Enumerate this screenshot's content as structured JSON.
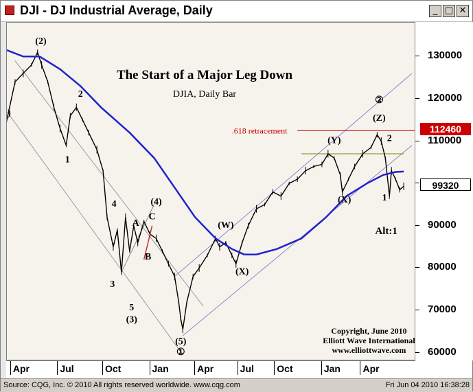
{
  "window": {
    "title": "DJI - DJ Industrial Average, Daily",
    "buttons": [
      "_",
      "□",
      "✕"
    ]
  },
  "status": {
    "left": "Source: CQG, Inc. © 2010 All rights reserved worldwide. www.cqg.com",
    "right": "Fri Jun 04 2010 16:38:28"
  },
  "chart_data": {
    "type": "line",
    "title": "The Start of a Major Leg Down",
    "subtitle": "DJIA, Daily Bar",
    "x_tick_labels": [
      "Apr",
      "Jul",
      "Oct",
      "Jan",
      "Apr",
      "Jul",
      "Oct",
      "Jan",
      "Apr"
    ],
    "y_tick_labels": [
      "130000",
      "120000",
      "110000",
      "100000",
      "90000",
      "80000",
      "70000",
      "60000"
    ],
    "ylim": [
      58000,
      138000
    ],
    "grid": false,
    "price_tags": [
      {
        "label": "112460",
        "value": 112460,
        "color": "#cc0000"
      },
      {
        "label": "99320",
        "value": 99320,
        "color": "#000000"
      }
    ],
    "annotations": {
      "retracement": ".618 retracement",
      "alt": "Alt:1",
      "copyright": [
        "Copyright, June 2010",
        "Elliott Wave International",
        "www.elliottwave.com"
      ]
    },
    "series": [
      {
        "name": "price",
        "color": "#000000",
        "points": [
          [
            0.0,
            115000
          ],
          [
            0.02,
            124000
          ],
          [
            0.04,
            126000
          ],
          [
            0.06,
            128000
          ],
          [
            0.075,
            131000
          ],
          [
            0.085,
            128000
          ],
          [
            0.1,
            124000
          ],
          [
            0.115,
            118000
          ],
          [
            0.13,
            113000
          ],
          [
            0.145,
            109000
          ],
          [
            0.155,
            116000
          ],
          [
            0.17,
            118000
          ],
          [
            0.185,
            115000
          ],
          [
            0.2,
            112000
          ],
          [
            0.22,
            108000
          ],
          [
            0.235,
            103000
          ],
          [
            0.245,
            92000
          ],
          [
            0.26,
            85000
          ],
          [
            0.27,
            89000
          ],
          [
            0.28,
            79000
          ],
          [
            0.29,
            92000
          ],
          [
            0.3,
            84000
          ],
          [
            0.31,
            90000
          ],
          [
            0.32,
            86000
          ],
          [
            0.335,
            91000
          ],
          [
            0.35,
            88000
          ],
          [
            0.365,
            87000
          ],
          [
            0.38,
            84000
          ],
          [
            0.395,
            81000
          ],
          [
            0.41,
            78000
          ],
          [
            0.42,
            72000
          ],
          [
            0.425,
            68000
          ],
          [
            0.43,
            65500
          ],
          [
            0.44,
            72000
          ],
          [
            0.455,
            78000
          ],
          [
            0.47,
            80000
          ],
          [
            0.49,
            83000
          ],
          [
            0.51,
            87000
          ],
          [
            0.52,
            85000
          ],
          [
            0.535,
            86000
          ],
          [
            0.55,
            83000
          ],
          [
            0.56,
            81000
          ],
          [
            0.575,
            86000
          ],
          [
            0.59,
            90000
          ],
          [
            0.61,
            94000
          ],
          [
            0.63,
            95000
          ],
          [
            0.65,
            98000
          ],
          [
            0.67,
            97000
          ],
          [
            0.69,
            100000
          ],
          [
            0.71,
            101000
          ],
          [
            0.73,
            103000
          ],
          [
            0.75,
            104000
          ],
          [
            0.77,
            104500
          ],
          [
            0.785,
            107000
          ],
          [
            0.8,
            106000
          ],
          [
            0.815,
            102000
          ],
          [
            0.82,
            98000
          ],
          [
            0.835,
            101000
          ],
          [
            0.85,
            104000
          ],
          [
            0.87,
            107000
          ],
          [
            0.89,
            108500
          ],
          [
            0.905,
            111500
          ],
          [
            0.915,
            110000
          ],
          [
            0.925,
            106000
          ],
          [
            0.935,
            97000
          ],
          [
            0.94,
            103000
          ],
          [
            0.95,
            101000
          ],
          [
            0.96,
            98500
          ],
          [
            0.97,
            99320
          ]
        ]
      },
      {
        "name": "moving-average",
        "color": "#2222cc",
        "points": [
          [
            0.0,
            131500
          ],
          [
            0.04,
            130000
          ],
          [
            0.08,
            130000
          ],
          [
            0.13,
            127000
          ],
          [
            0.18,
            123000
          ],
          [
            0.23,
            118000
          ],
          [
            0.3,
            112000
          ],
          [
            0.36,
            106000
          ],
          [
            0.41,
            99000
          ],
          [
            0.46,
            92000
          ],
          [
            0.51,
            87000
          ],
          [
            0.55,
            84500
          ],
          [
            0.58,
            83200
          ],
          [
            0.61,
            83200
          ],
          [
            0.66,
            84500
          ],
          [
            0.72,
            87000
          ],
          [
            0.78,
            92000
          ],
          [
            0.83,
            97000
          ],
          [
            0.88,
            100000
          ],
          [
            0.92,
            102000
          ],
          [
            0.95,
            102700
          ],
          [
            0.97,
            102800
          ]
        ]
      }
    ],
    "wave_labels": [
      {
        "text": "(2)",
        "x": 0.083,
        "y": 133000
      },
      {
        "text": "1)",
        "x": 0.0,
        "y": 116000
      },
      {
        "text": "1",
        "x": 0.148,
        "y": 105000
      },
      {
        "text": "2",
        "x": 0.18,
        "y": 120500
      },
      {
        "text": "4",
        "x": 0.262,
        "y": 94500
      },
      {
        "text": "3",
        "x": 0.258,
        "y": 75500
      },
      {
        "text": "(4)",
        "x": 0.365,
        "y": 95000
      },
      {
        "text": "A",
        "x": 0.315,
        "y": 90000
      },
      {
        "text": "B",
        "x": 0.345,
        "y": 82000
      },
      {
        "text": "C",
        "x": 0.355,
        "y": 91500
      },
      {
        "text": "5",
        "x": 0.305,
        "y": 70000
      },
      {
        "text": "(3)",
        "x": 0.305,
        "y": 67200
      },
      {
        "text": "(5)",
        "x": 0.425,
        "y": 62000
      },
      {
        "text": "①",
        "x": 0.425,
        "y": 59500
      },
      {
        "text": "(W)",
        "x": 0.535,
        "y": 89500
      },
      {
        "text": "(X)",
        "x": 0.575,
        "y": 78500
      },
      {
        "text": "(Y)",
        "x": 0.8,
        "y": 109500
      },
      {
        "text": "(X)",
        "x": 0.825,
        "y": 95500
      },
      {
        "text": "②",
        "x": 0.91,
        "y": 119000
      },
      {
        "text": "(Z)",
        "x": 0.91,
        "y": 114800
      },
      {
        "text": "2",
        "x": 0.935,
        "y": 110000
      },
      {
        "text": "1",
        "x": 0.923,
        "y": 96000
      }
    ],
    "channel_lines": [
      {
        "color": "#9a9aa0",
        "from": [
          0.02,
          129000
        ],
        "to": [
          0.48,
          71000
        ]
      },
      {
        "color": "#9a9aa0",
        "from": [
          0.0,
          117000
        ],
        "to": [
          0.43,
          59500
        ]
      },
      {
        "color": "#8888cc",
        "from": [
          0.41,
          78000
        ],
        "to": [
          0.99,
          126000
        ]
      },
      {
        "color": "#8888cc",
        "from": [
          0.43,
          64000
        ],
        "to": [
          0.99,
          109000
        ]
      },
      {
        "color": "#888888",
        "from": [
          0.28,
          79000
        ],
        "to": [
          0.36,
          95000
        ]
      }
    ],
    "levels": [
      {
        "name": "retracement-line",
        "color": "#cc0000",
        "from": 0.71,
        "to": 1.0,
        "value": 112460
      },
      {
        "name": "olive-line",
        "color": "#808000",
        "from": 0.72,
        "to": 0.97,
        "value": 107000
      }
    ]
  }
}
